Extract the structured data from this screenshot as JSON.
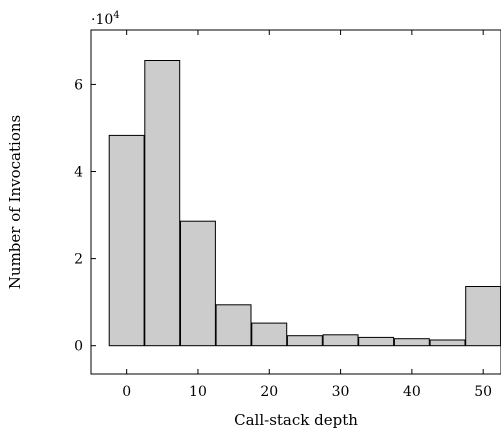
{
  "chart_data": {
    "type": "bar",
    "title": "",
    "xlabel": "Call-stack depth",
    "ylabel": "Number of Invocations",
    "y_multiplier_base": "·10",
    "y_multiplier_exp": "4",
    "x": [
      0,
      5,
      10,
      15,
      20,
      25,
      30,
      35,
      40,
      45,
      50
    ],
    "values": [
      48300,
      65500,
      28600,
      9400,
      5200,
      2300,
      2500,
      1900,
      1600,
      1300,
      13600
    ],
    "xlim": [
      -5,
      52.5
    ],
    "ylim": [
      -6500,
      72500
    ],
    "x_ticks": [
      0,
      10,
      20,
      30,
      40,
      50
    ],
    "x_tick_labels": [
      "0",
      "10",
      "20",
      "30",
      "40",
      "50"
    ],
    "y_ticks": [
      0,
      20000,
      40000,
      60000
    ],
    "y_tick_labels": [
      "0",
      "2",
      "4",
      "6"
    ],
    "grid": false,
    "colors": {
      "bar_fill": "#cccccc",
      "bar_stroke": "#000000"
    }
  }
}
